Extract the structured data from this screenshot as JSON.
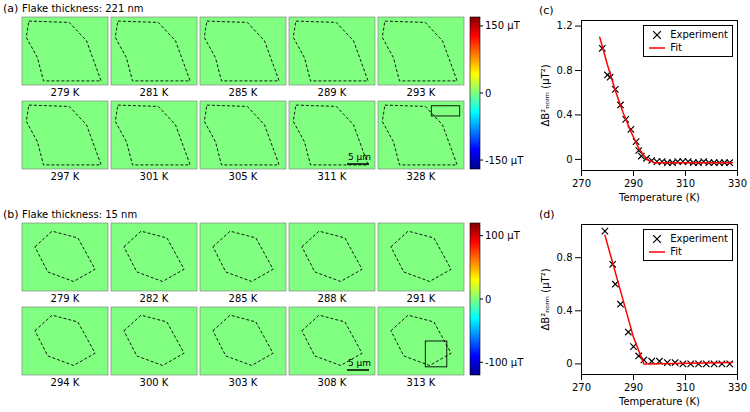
{
  "maps": [
    {
      "label": "(a)",
      "title": "Flake thickness: 221 nm",
      "temperatures": [
        "279 K",
        "281 K",
        "285 K",
        "289 K",
        "293 K",
        "297 K",
        "301 K",
        "305 K",
        "311 K",
        "328 K"
      ],
      "colorbar": {
        "range": [
          -170,
          170
        ],
        "ticks": [
          {
            "value": 150,
            "label": "150 μT"
          },
          0,
          {
            "value": -150,
            "label": "-150 μT"
          }
        ]
      },
      "scale_bar": "5 μm"
    },
    {
      "label": "(b)",
      "title": "Flake thickness: 15 nm",
      "temperatures": [
        "279 K",
        "282 K",
        "285 K",
        "288 K",
        "291 K",
        "294 K",
        "300 K",
        "303 K",
        "308 K",
        "313 K"
      ],
      "colorbar": {
        "range": [
          -120,
          120
        ],
        "ticks": [
          {
            "value": 100,
            "label": "100 μT"
          },
          0,
          {
            "value": -100,
            "label": "-100 μT"
          }
        ]
      },
      "scale_bar": "5 μm"
    }
  ],
  "chart_data": [
    {
      "label": "(c)",
      "type": "scatter",
      "xlabel": "Temperature (K)",
      "ylabel": "ΔB²ₙₒᵣₘ (μT²)",
      "xlim": [
        270,
        330
      ],
      "xticks": [
        270,
        290,
        310,
        330
      ],
      "ylim": [
        -0.1,
        1.25
      ],
      "yticks": [
        0,
        0.4,
        0.8,
        1.2
      ],
      "legend": "top-right",
      "series": [
        {
          "name": "Experiment",
          "type": "scatter",
          "marker": "x",
          "color": "#000000",
          "x": [
            278,
            280,
            281,
            283,
            285,
            287,
            289,
            291,
            292,
            293,
            295,
            297,
            299,
            301,
            303,
            305,
            307,
            309,
            311,
            313,
            315,
            317,
            319,
            321,
            323,
            325,
            327
          ],
          "values": [
            1.0,
            0.76,
            0.74,
            0.63,
            0.49,
            0.36,
            0.27,
            0.16,
            0.08,
            0.03,
            0.01,
            -0.01,
            -0.02,
            -0.02,
            -0.03,
            -0.03,
            -0.02,
            -0.02,
            -0.02,
            -0.03,
            -0.03,
            -0.02,
            -0.03,
            -0.03,
            -0.03,
            -0.03,
            -0.03
          ]
        },
        {
          "name": "Fit",
          "type": "line",
          "line_style": "solid",
          "color": "#ff0000",
          "x": [
            277,
            280,
            283,
            286,
            289,
            292,
            295,
            298,
            328
          ],
          "values": [
            1.1,
            0.85,
            0.62,
            0.42,
            0.25,
            0.1,
            0.0,
            -0.03,
            -0.03
          ]
        }
      ]
    },
    {
      "label": "(d)",
      "type": "scatter",
      "xlabel": "Temperature (K)",
      "ylabel": "ΔB²ₙₒᵣₘ (μT²)",
      "xlim": [
        270,
        330
      ],
      "xticks": [
        270,
        290,
        310,
        330
      ],
      "ylim": [
        -0.08,
        1.05
      ],
      "yticks": [
        0,
        0.4,
        0.8
      ],
      "legend": "top-right",
      "series": [
        {
          "name": "Experiment",
          "type": "scatter",
          "marker": "x",
          "color": "#000000",
          "x": [
            279,
            282,
            283,
            285,
            288,
            290,
            292,
            294,
            297,
            300,
            303,
            306,
            309,
            312,
            315,
            318,
            321,
            324,
            327
          ],
          "values": [
            1.0,
            0.75,
            0.6,
            0.45,
            0.24,
            0.13,
            0.06,
            0.03,
            0.02,
            0.02,
            0.01,
            0.01,
            0.0,
            0.0,
            0.0,
            0.0,
            0.0,
            0.0,
            0.0
          ]
        },
        {
          "name": "Fit",
          "type": "line",
          "line_style": "solid",
          "color": "#ff0000",
          "x": [
            279,
            285,
            290,
            294,
            328
          ],
          "values": [
            0.97,
            0.55,
            0.2,
            0.0,
            0.01
          ]
        }
      ]
    }
  ]
}
